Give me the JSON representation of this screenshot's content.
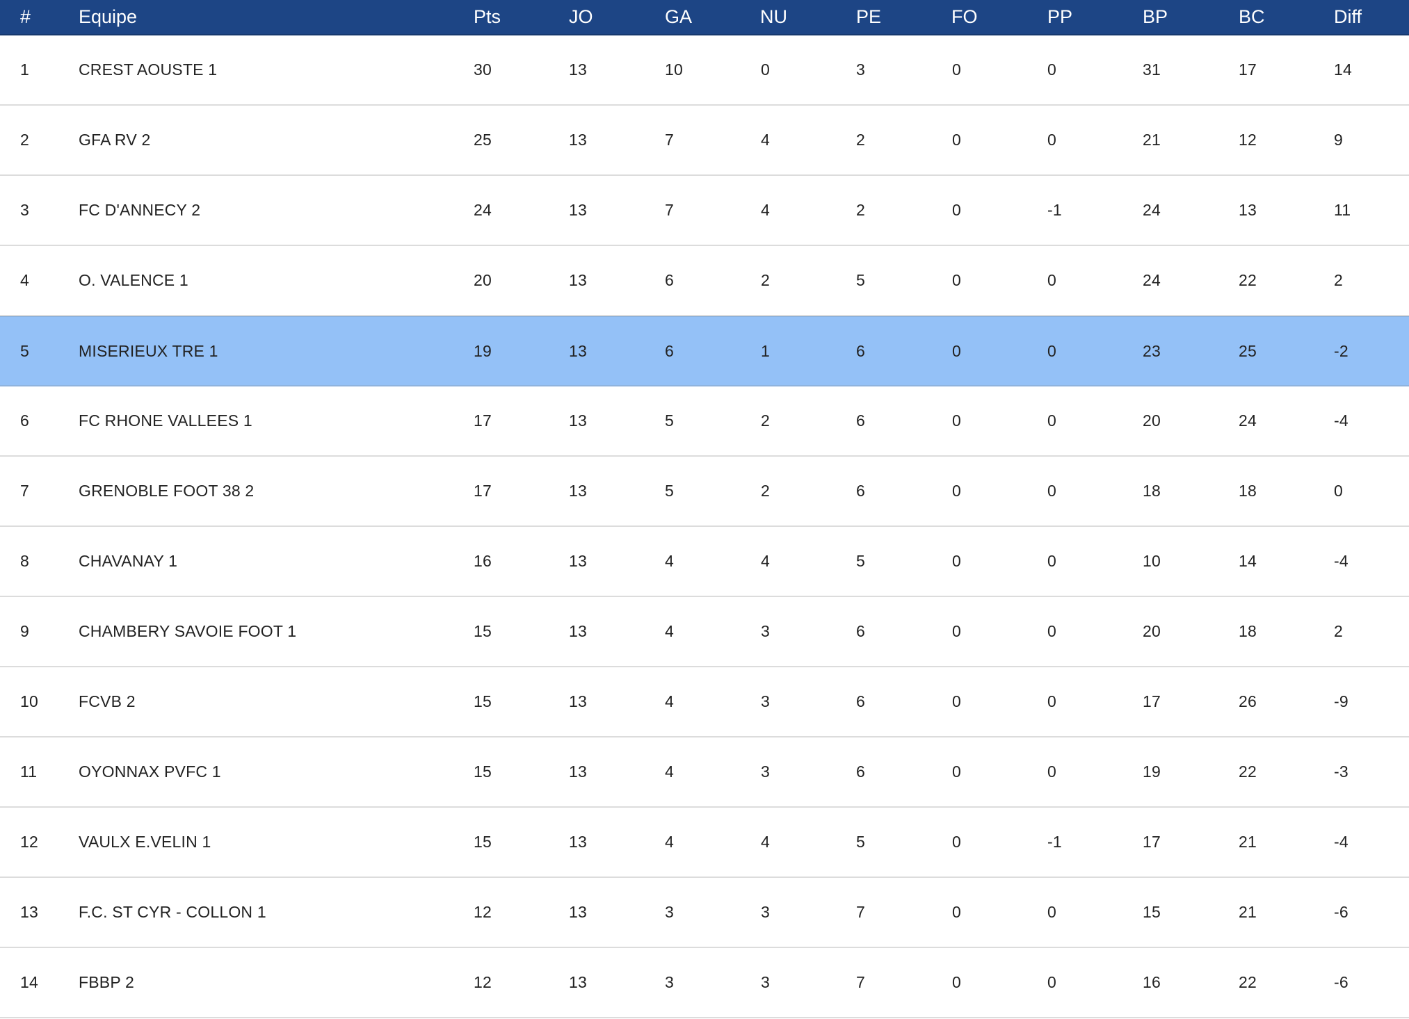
{
  "table": {
    "headers": {
      "rank": "#",
      "team": "Equipe",
      "pts": "Pts",
      "jo": "JO",
      "ga": "GA",
      "nu": "NU",
      "pe": "PE",
      "fo": "FO",
      "pp": "PP",
      "bp": "BP",
      "bc": "BC",
      "diff": "Diff"
    },
    "header_color": "#1d4585",
    "highlight_color": "#94c1f7",
    "highlighted_rank": "5",
    "rows": [
      {
        "rank": "1",
        "team": "CREST AOUSTE 1",
        "pts": "30",
        "jo": "13",
        "ga": "10",
        "nu": "0",
        "pe": "3",
        "fo": "0",
        "pp": "0",
        "bp": "31",
        "bc": "17",
        "diff": "14"
      },
      {
        "rank": "2",
        "team": "GFA RV 2",
        "pts": "25",
        "jo": "13",
        "ga": "7",
        "nu": "4",
        "pe": "2",
        "fo": "0",
        "pp": "0",
        "bp": "21",
        "bc": "12",
        "diff": "9"
      },
      {
        "rank": "3",
        "team": "FC D'ANNECY 2",
        "pts": "24",
        "jo": "13",
        "ga": "7",
        "nu": "4",
        "pe": "2",
        "fo": "0",
        "pp": "-1",
        "bp": "24",
        "bc": "13",
        "diff": "11"
      },
      {
        "rank": "4",
        "team": "O. VALENCE 1",
        "pts": "20",
        "jo": "13",
        "ga": "6",
        "nu": "2",
        "pe": "5",
        "fo": "0",
        "pp": "0",
        "bp": "24",
        "bc": "22",
        "diff": "2"
      },
      {
        "rank": "5",
        "team": "MISERIEUX TRE 1",
        "pts": "19",
        "jo": "13",
        "ga": "6",
        "nu": "1",
        "pe": "6",
        "fo": "0",
        "pp": "0",
        "bp": "23",
        "bc": "25",
        "diff": "-2"
      },
      {
        "rank": "6",
        "team": "FC RHONE VALLEES 1",
        "pts": "17",
        "jo": "13",
        "ga": "5",
        "nu": "2",
        "pe": "6",
        "fo": "0",
        "pp": "0",
        "bp": "20",
        "bc": "24",
        "diff": "-4"
      },
      {
        "rank": "7",
        "team": "GRENOBLE FOOT 38 2",
        "pts": "17",
        "jo": "13",
        "ga": "5",
        "nu": "2",
        "pe": "6",
        "fo": "0",
        "pp": "0",
        "bp": "18",
        "bc": "18",
        "diff": "0"
      },
      {
        "rank": "8",
        "team": "CHAVANAY 1",
        "pts": "16",
        "jo": "13",
        "ga": "4",
        "nu": "4",
        "pe": "5",
        "fo": "0",
        "pp": "0",
        "bp": "10",
        "bc": "14",
        "diff": "-4"
      },
      {
        "rank": "9",
        "team": "CHAMBERY SAVOIE FOOT 1",
        "pts": "15",
        "jo": "13",
        "ga": "4",
        "nu": "3",
        "pe": "6",
        "fo": "0",
        "pp": "0",
        "bp": "20",
        "bc": "18",
        "diff": "2"
      },
      {
        "rank": "10",
        "team": "FCVB 2",
        "pts": "15",
        "jo": "13",
        "ga": "4",
        "nu": "3",
        "pe": "6",
        "fo": "0",
        "pp": "0",
        "bp": "17",
        "bc": "26",
        "diff": "-9"
      },
      {
        "rank": "11",
        "team": "OYONNAX PVFC 1",
        "pts": "15",
        "jo": "13",
        "ga": "4",
        "nu": "3",
        "pe": "6",
        "fo": "0",
        "pp": "0",
        "bp": "19",
        "bc": "22",
        "diff": "-3"
      },
      {
        "rank": "12",
        "team": "VAULX E.VELIN 1",
        "pts": "15",
        "jo": "13",
        "ga": "4",
        "nu": "4",
        "pe": "5",
        "fo": "0",
        "pp": "-1",
        "bp": "17",
        "bc": "21",
        "diff": "-4"
      },
      {
        "rank": "13",
        "team": "F.C. ST CYR - COLLON 1",
        "pts": "12",
        "jo": "13",
        "ga": "3",
        "nu": "3",
        "pe": "7",
        "fo": "0",
        "pp": "0",
        "bp": "15",
        "bc": "21",
        "diff": "-6"
      },
      {
        "rank": "14",
        "team": "FBBP 2",
        "pts": "12",
        "jo": "13",
        "ga": "3",
        "nu": "3",
        "pe": "7",
        "fo": "0",
        "pp": "0",
        "bp": "16",
        "bc": "22",
        "diff": "-6"
      }
    ]
  }
}
